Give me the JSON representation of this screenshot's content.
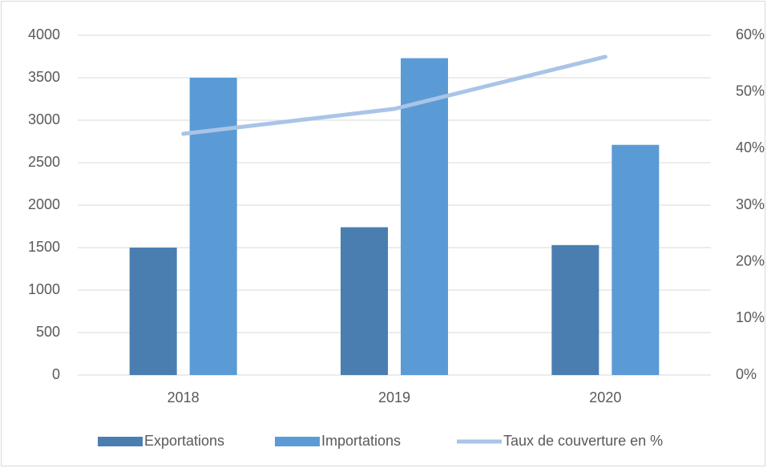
{
  "chart_data": {
    "type": "bar",
    "categories": [
      "2018",
      "2019",
      "2020"
    ],
    "series": [
      {
        "name": "Exportations",
        "color": "#4a7eb0",
        "values": [
          1500,
          1740,
          1530
        ]
      },
      {
        "name": "Importations",
        "color": "#5b9bd5",
        "values": [
          3500,
          3730,
          2710
        ]
      },
      {
        "name": "Taux de couverture en %",
        "color": "#a9c4e7",
        "type": "line",
        "axis": "y2",
        "values": [
          42.6,
          47.0,
          56.2
        ]
      }
    ],
    "ylim": [
      0,
      4000
    ],
    "yticks": [
      0,
      500,
      1000,
      1500,
      2000,
      2500,
      3000,
      3500,
      4000
    ],
    "y2lim": [
      0,
      60
    ],
    "y2ticks": [
      {
        "value": 0,
        "label": "0%"
      },
      {
        "value": 10,
        "label": "10%"
      },
      {
        "value": 20,
        "label": "20%"
      },
      {
        "value": 30,
        "label": "30%"
      },
      {
        "value": 40,
        "label": "40%"
      },
      {
        "value": 50,
        "label": "50%"
      },
      {
        "value": 60,
        "label": "60%"
      }
    ],
    "grid": true,
    "legend": "bottom"
  }
}
